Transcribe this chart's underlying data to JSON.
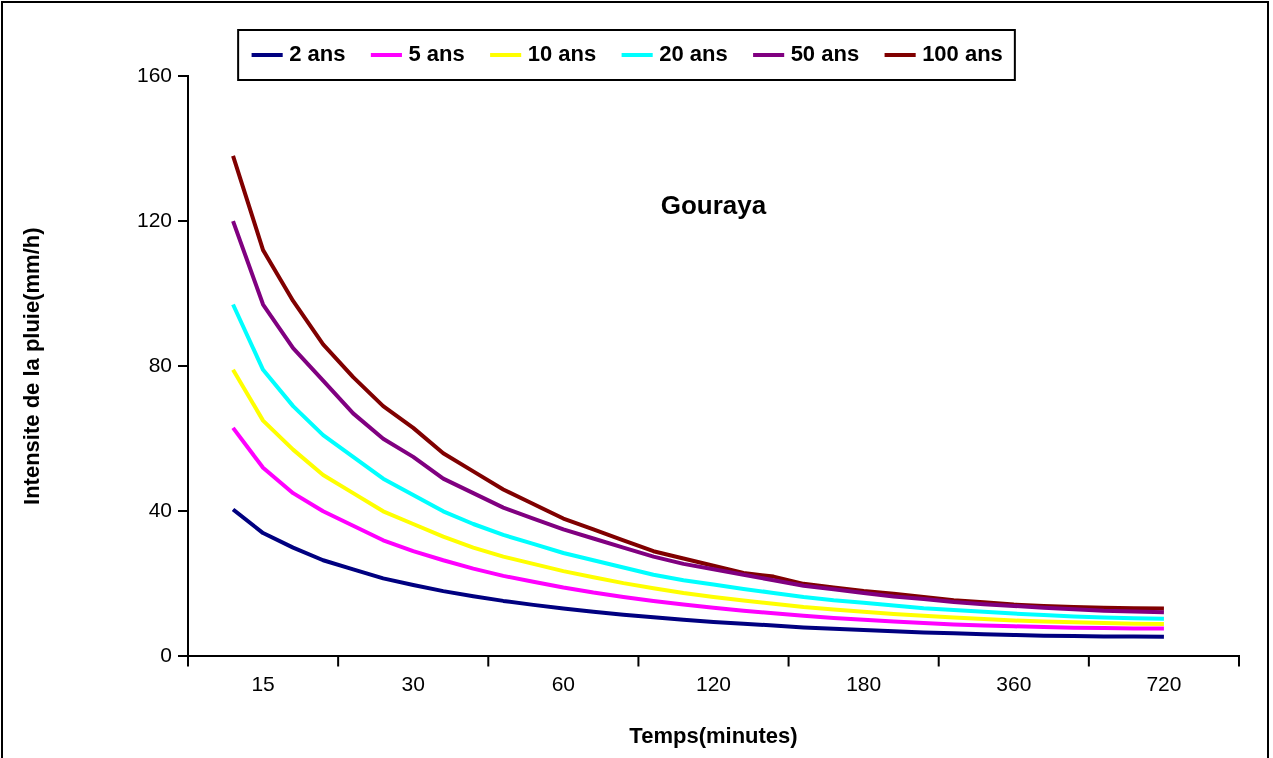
{
  "chart_data": {
    "type": "line",
    "title": "Gouraya",
    "xlabel": "Temps(minutes)",
    "ylabel": "Intensite de la pluie(mm/h)",
    "categories": [
      null,
      null,
      "15",
      null,
      null,
      null,
      null,
      "30",
      null,
      null,
      null,
      null,
      "60",
      null,
      null,
      null,
      null,
      "120",
      null,
      null,
      null,
      null,
      "180",
      null,
      null,
      null,
      null,
      "360",
      null,
      null,
      null,
      null,
      "720",
      null,
      null
    ],
    "series": [
      {
        "name": "2 ans",
        "color": "#000080",
        "values": [
          null,
          40.5,
          34,
          30,
          26.5,
          24,
          21.5,
          19.7,
          18,
          16.6,
          15.3,
          14.2,
          13.2,
          12.3,
          11.5,
          10.8,
          10.1,
          9.5,
          9,
          8.5,
          8,
          7.6,
          7.3,
          6.9,
          6.6,
          6.4,
          6.1,
          5.9,
          5.7,
          5.6,
          5.5,
          5.5,
          5.4,
          null,
          null
        ]
      },
      {
        "name": "5 ans",
        "color": "#ff00ff",
        "values": [
          null,
          63,
          52,
          45,
          40,
          36,
          32,
          29,
          26.5,
          24.2,
          22.2,
          20.6,
          19,
          17.6,
          16.4,
          15.3,
          14.3,
          13.4,
          12.6,
          11.9,
          11.2,
          10.6,
          10.1,
          9.6,
          9.2,
          8.8,
          8.5,
          8.3,
          8.1,
          7.9,
          7.8,
          7.7,
          7.7,
          null,
          null
        ]
      },
      {
        "name": "10 ans",
        "color": "#ffff00",
        "values": [
          null,
          79,
          65,
          57,
          50,
          45,
          40,
          36.5,
          33,
          30,
          27.5,
          25.5,
          23.5,
          21.8,
          20.2,
          18.8,
          17.5,
          16.4,
          15.4,
          14.5,
          13.6,
          12.9,
          12.3,
          11.7,
          11.2,
          10.7,
          10.3,
          9.9,
          9.6,
          9.4,
          9.2,
          9,
          8.9,
          null,
          null
        ]
      },
      {
        "name": "20 ans",
        "color": "#00ffff",
        "values": [
          null,
          97,
          79,
          69,
          61,
          55,
          49,
          44.5,
          40,
          36.5,
          33.5,
          31,
          28.5,
          26.5,
          24.5,
          22.5,
          21,
          19.8,
          18.6,
          17.5,
          16.4,
          15.5,
          14.8,
          14,
          13.3,
          12.8,
          12.3,
          11.8,
          11.4,
          11,
          10.7,
          10.5,
          10.4,
          null,
          null
        ]
      },
      {
        "name": "50 ans",
        "color": "#800080",
        "values": [
          null,
          120,
          97,
          85,
          76,
          67,
          60,
          55,
          49,
          45,
          41,
          38,
          35,
          32.5,
          30,
          27.5,
          25.5,
          24,
          22.5,
          21,
          19.5,
          18.5,
          17.5,
          16.5,
          15.8,
          15,
          14.4,
          13.9,
          13.4,
          13,
          12.6,
          12.4,
          12.2,
          null,
          null
        ]
      },
      {
        "name": "100 ans",
        "color": "#800000",
        "values": [
          null,
          138,
          112,
          98,
          86,
          77,
          69,
          63,
          56,
          51,
          46,
          42,
          38,
          35,
          32,
          29,
          27,
          25,
          23,
          22,
          20,
          19,
          18,
          17.3,
          16.4,
          15.5,
          14.9,
          14.3,
          13.9,
          13.6,
          13.4,
          13.3,
          13.2,
          null,
          null
        ]
      }
    ],
    "ylim": [
      0,
      160
    ],
    "yticks": [
      0,
      40,
      80,
      120,
      160
    ],
    "grid": false,
    "legend": "top",
    "marker": "none",
    "line_style": "solid"
  }
}
